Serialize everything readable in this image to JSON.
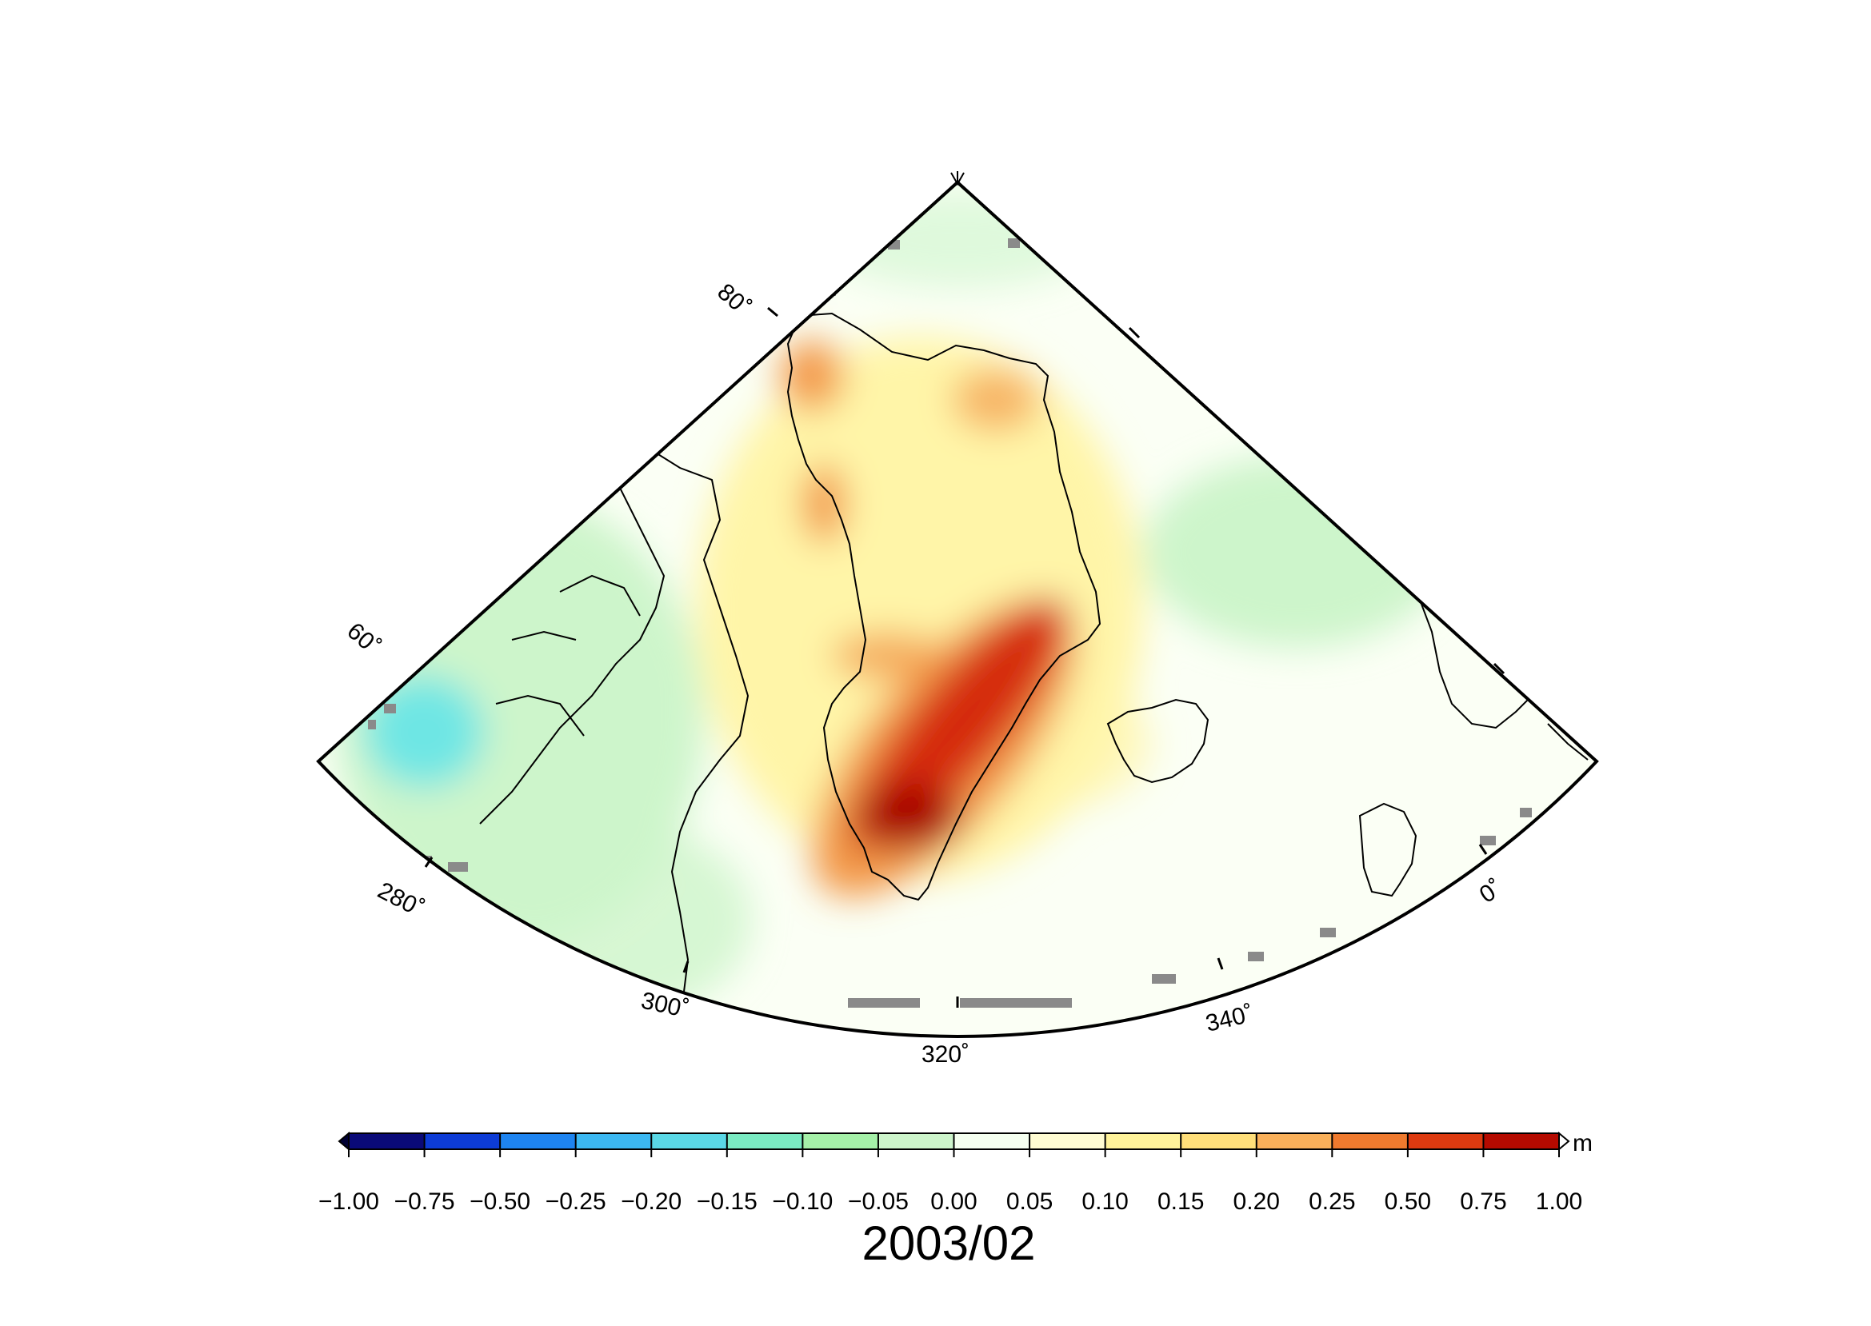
{
  "map": {
    "projection": "polar stereographic sector",
    "lon_labels": [
      "280˚",
      "300˚",
      "320˚",
      "340˚",
      "0˚"
    ],
    "lat_labels": [
      "60˚",
      "80˚"
    ],
    "field_colors": {
      "background": "#fbfff5",
      "ocean_green": "#cdf5cb",
      "cyan_anomaly": "#6ee6e4",
      "yellow": "#fff5a8",
      "orange": "#f39a4a",
      "red": "#d52a0a",
      "dark_red": "#a80000",
      "mask_gray": "#8a8a8a"
    }
  },
  "colorbar": {
    "unit": "m",
    "tick_labels": [
      "−1.00",
      "−0.75",
      "−0.50",
      "−0.25",
      "−0.20",
      "−0.15",
      "−0.10",
      "−0.05",
      "0.00",
      "0.05",
      "0.10",
      "0.15",
      "0.20",
      "0.25",
      "0.50",
      "0.75",
      "1.00"
    ],
    "colors": [
      "#0a0a78",
      "#0d3cd6",
      "#1e84f0",
      "#3cb8f2",
      "#5ad8e6",
      "#7aeac2",
      "#a5f0a8",
      "#cdf5cb",
      "#f5fff0",
      "#fffcd2",
      "#fff39a",
      "#ffdf7a",
      "#f9b05a",
      "#ef7a2e",
      "#dd3a10",
      "#b50a00",
      "#6e0000"
    ],
    "left_cap_color": "#000033",
    "right_cap_color": "#ffffff"
  },
  "title": "2003/02"
}
